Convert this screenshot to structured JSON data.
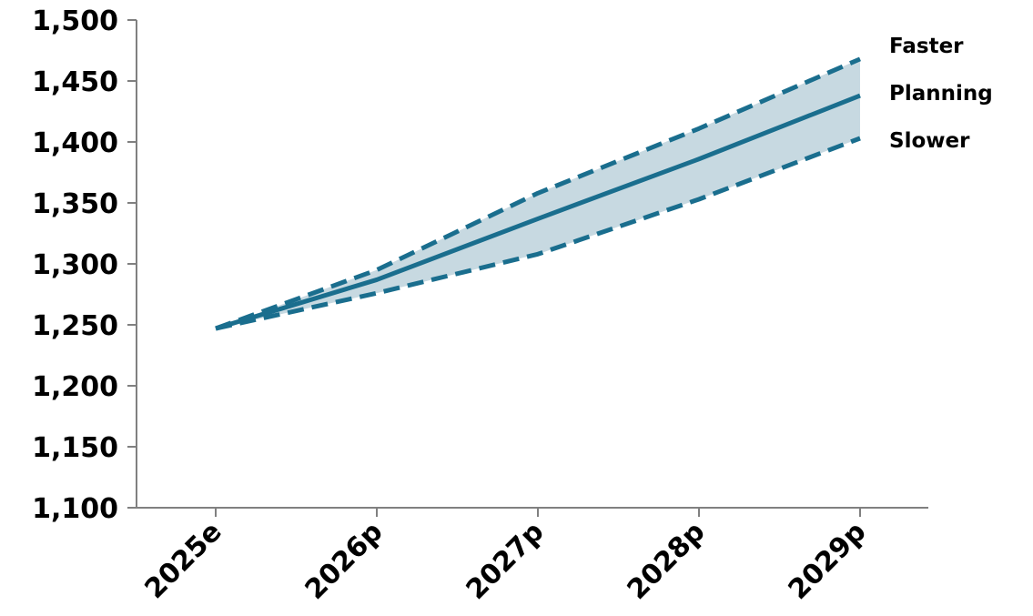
{
  "chart_data": {
    "type": "line",
    "title": "",
    "xlabel": "",
    "ylabel": "",
    "categories": [
      "2025e",
      "2026p",
      "2027p",
      "2028p",
      "2029p"
    ],
    "ylim": [
      1100,
      1500
    ],
    "yticks": [
      "1,100",
      "1,150",
      "1,200",
      "1,250",
      "1,300",
      "1,350",
      "1,400",
      "1,450",
      "1,500"
    ],
    "grid": false,
    "legend_position": "right",
    "band": {
      "upper_series": "Faster",
      "lower_series": "Slower",
      "color": "#c7d9e1"
    },
    "line_color": "#1a6e8e",
    "series": [
      {
        "name": "Faster",
        "style": "dashed",
        "values": [
          1247,
          1295,
          1358,
          1411,
          1468
        ]
      },
      {
        "name": "Planning",
        "style": "solid",
        "values": [
          1247,
          1287,
          1337,
          1386,
          1438
        ]
      },
      {
        "name": "Slower",
        "style": "dashed",
        "values": [
          1247,
          1276,
          1308,
          1353,
          1403
        ]
      }
    ]
  }
}
